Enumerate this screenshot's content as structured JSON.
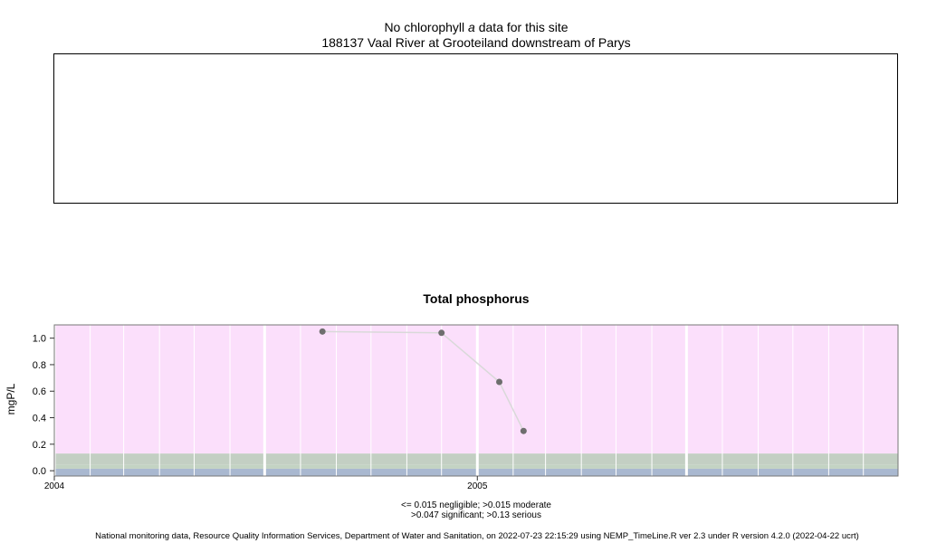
{
  "header": {
    "title_prefix": "No chlorophyll ",
    "title_italic": "a",
    "title_suffix": " data for this site",
    "site": "188137 Vaal River at Grooteiland downstream of Parys"
  },
  "chart_data": {
    "type": "line",
    "title": "Total phosphorus",
    "ylabel": "mgP/L",
    "xlabel": "",
    "x_start": "2004-01-01",
    "x_end": "2005-12-31",
    "ylim": [
      -0.04,
      1.1
    ],
    "yticks": [
      {
        "value": 0.0,
        "label": "0.0"
      },
      {
        "value": 0.2,
        "label": "0.2"
      },
      {
        "value": 0.4,
        "label": "0.4"
      },
      {
        "value": 0.6,
        "label": "0.6"
      },
      {
        "value": 0.8,
        "label": "0.8"
      },
      {
        "value": 1.0,
        "label": "1.0"
      }
    ],
    "xticks": [
      {
        "date": "2004-01-01",
        "label": "2004"
      },
      {
        "date": "2005-01-01",
        "label": "2005"
      }
    ],
    "points": [
      {
        "date": "2004-08-20",
        "value": 1.05
      },
      {
        "date": "2004-12-01",
        "value": 1.04
      },
      {
        "date": "2005-01-20",
        "value": 0.67
      },
      {
        "date": "2005-02-10",
        "value": 0.3
      }
    ],
    "bands": [
      {
        "from": -0.04,
        "to": 0.015,
        "color": "#a9b8d0"
      },
      {
        "from": 0.015,
        "to": 0.047,
        "color": "#c3d3c3"
      },
      {
        "from": 0.047,
        "to": 0.13,
        "color": "#c3cfc3"
      },
      {
        "from": 0.13,
        "to": 1.1,
        "color": "#fbdffb"
      }
    ],
    "grid": true
  },
  "legend": {
    "line1": "<= 0.015 negligible; >0.015 moderate",
    "line2": ">0.047 significant; >0.13 serious"
  },
  "footer": {
    "text": "National monitoring data, Resource Quality Information Services, Department of Water and Sanitation, on 2022-07-23 22:15:29 using NEMP_TimeLine.R ver 2.3 under R version 4.2.0 (2022-04-22 ucrt)"
  },
  "colors": {
    "point": "#6e6e6e",
    "line": "#d9d9d9"
  }
}
